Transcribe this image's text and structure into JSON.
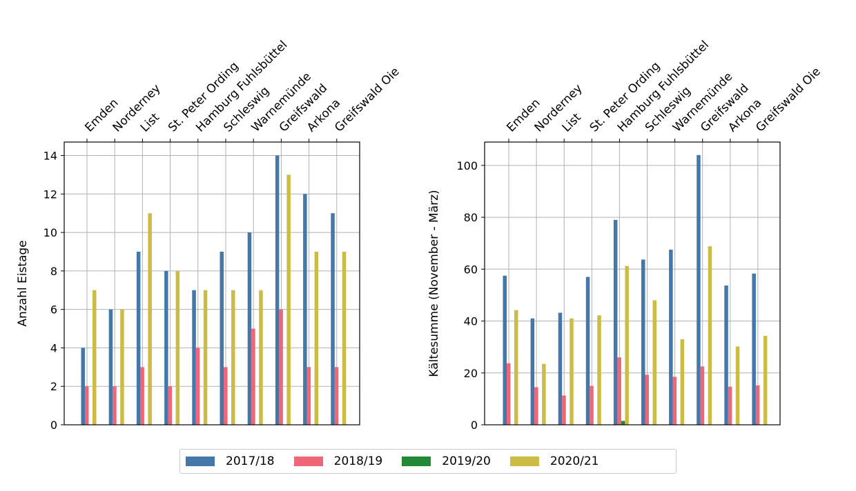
{
  "chart_data": [
    {
      "type": "bar",
      "categories": [
        "Emden",
        "Norderney",
        "List",
        "St. Peter Ording",
        "Hamburg Fuhlsbüttel",
        "Schleswig",
        "Warnemünde",
        "Greifswald",
        "Arkona",
        "Greifswald Oie"
      ],
      "series": [
        {
          "name": "2017/18",
          "values": [
            4,
            6,
            9,
            8,
            7,
            9,
            10,
            14,
            12,
            11
          ]
        },
        {
          "name": "2018/19",
          "values": [
            2,
            2,
            3,
            2,
            4,
            3,
            5,
            6,
            3,
            3
          ]
        },
        {
          "name": "2019/20",
          "values": [
            0,
            0,
            0,
            0,
            0,
            0,
            0,
            0,
            0,
            0
          ]
        },
        {
          "name": "2020/21",
          "values": [
            7,
            6,
            11,
            8,
            7,
            7,
            7,
            13,
            9,
            9
          ]
        }
      ],
      "ylabel": "Anzahl Eistage",
      "ylim": [
        0,
        14.7
      ],
      "yticks": [
        0,
        2,
        4,
        6,
        8,
        10,
        12,
        14
      ],
      "xtick_position": "top",
      "grid": true
    },
    {
      "type": "bar",
      "categories": [
        "Emden",
        "Norderney",
        "List",
        "St. Peter Ording",
        "Hamburg Fuhlsbüttel",
        "Schleswig",
        "Warnemünde",
        "Greifswald",
        "Arkona",
        "Greifswald Oie"
      ],
      "series": [
        {
          "name": "2017/18",
          "values": [
            57.5,
            41,
            43.2,
            57,
            79,
            63.7,
            67.5,
            104,
            53.7,
            58.3
          ]
        },
        {
          "name": "2018/19",
          "values": [
            23.7,
            14.5,
            11.3,
            15,
            26,
            19.3,
            18.5,
            22.5,
            14.7,
            15.2
          ]
        },
        {
          "name": "2019/20",
          "values": [
            0,
            0,
            0,
            0,
            1.5,
            0,
            0,
            0,
            0,
            0
          ]
        },
        {
          "name": "2020/21",
          "values": [
            44.2,
            23.5,
            41,
            42.2,
            61.2,
            48,
            33,
            68.8,
            30.2,
            34.3
          ]
        }
      ],
      "ylabel": "Kältesumme (November - März)",
      "ylim": [
        0,
        109
      ],
      "yticks": [
        0,
        20,
        40,
        60,
        80,
        100
      ],
      "xtick_position": "top",
      "grid": true
    }
  ],
  "legend": {
    "placement": "bottom-center",
    "entries": [
      {
        "label": "2017/18",
        "color": "#4477aa"
      },
      {
        "label": "2018/19",
        "color": "#ee6677"
      },
      {
        "label": "2019/20",
        "color": "#228833"
      },
      {
        "label": "2020/21",
        "color": "#ccbb44"
      }
    ]
  },
  "colors": {
    "grid": "#b0b0b0",
    "axis": "#000000"
  }
}
